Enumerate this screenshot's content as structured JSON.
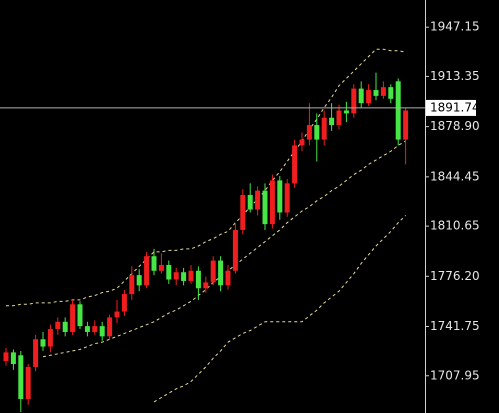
{
  "chart_data": {
    "type": "candlestick",
    "ylim": [
      1682.4,
      1965.8
    ],
    "yticks": [
      1947.15,
      1913.35,
      {
        "value": 1878.9,
        "label": "1878.90"
      },
      1844.45,
      1810.65,
      {
        "value": 1776.2,
        "label": "1776.20"
      },
      1741.75,
      1707.95
    ],
    "last_price": 1891.74,
    "up_color": "#f01e1e",
    "down_color": "#46e646",
    "band_color": "#e6dc9a",
    "open": [
      1718,
      1724,
      1722,
      1692,
      1714,
      1733,
      1728,
      1740,
      1745,
      1738,
      1757,
      1742,
      1738,
      1742,
      1735,
      1748,
      1752,
      1764,
      1777,
      1770,
      1790,
      1780,
      1784,
      1774,
      1779,
      1773,
      1780,
      1768,
      1772,
      1787,
      1770,
      1780,
      1808,
      1832,
      1822,
      1835,
      1812,
      1842,
      1820,
      1840,
      1866,
      1870,
      1880,
      1870,
      1885,
      1880,
      1890,
      1888,
      1905,
      1895,
      1904,
      1900,
      1906,
      1910,
      1870
    ],
    "high": [
      1727,
      1726,
      1725,
      1716,
      1736,
      1738,
      1743,
      1748,
      1748,
      1760,
      1759,
      1745,
      1746,
      1745,
      1750,
      1760,
      1767,
      1783,
      1781,
      1793,
      1795,
      1792,
      1787,
      1782,
      1782,
      1784,
      1783,
      1776,
      1790,
      1790,
      1784,
      1812,
      1836,
      1840,
      1838,
      1840,
      1846,
      1845,
      1843,
      1870,
      1875,
      1895,
      1888,
      1890,
      1895,
      1894,
      1896,
      1908,
      1910,
      1908,
      1916,
      1910,
      1908,
      1912,
      1892
    ],
    "low": [
      1715,
      1712,
      1683,
      1688,
      1711,
      1725,
      1724,
      1736,
      1735,
      1736,
      1740,
      1735,
      1736,
      1732,
      1733,
      1744,
      1749,
      1760,
      1766,
      1768,
      1777,
      1778,
      1771,
      1770,
      1770,
      1771,
      1760,
      1765,
      1770,
      1766,
      1767,
      1778,
      1805,
      1820,
      1818,
      1808,
      1809,
      1815,
      1817,
      1837,
      1862,
      1866,
      1855,
      1866,
      1876,
      1877,
      1882,
      1885,
      1892,
      1893,
      1897,
      1898,
      1895,
      1866,
      1853
    ],
    "close": [
      1724,
      1716,
      1692,
      1714,
      1733,
      1728,
      1740,
      1745,
      1738,
      1757,
      1742,
      1738,
      1742,
      1735,
      1748,
      1752,
      1764,
      1777,
      1770,
      1790,
      1780,
      1784,
      1774,
      1779,
      1773,
      1780,
      1768,
      1772,
      1787,
      1770,
      1780,
      1808,
      1832,
      1822,
      1835,
      1812,
      1842,
      1820,
      1840,
      1866,
      1870,
      1880,
      1870,
      1885,
      1880,
      1890,
      1888,
      1905,
      1895,
      1904,
      1900,
      1906,
      1898,
      1870,
      1890
    ],
    "bands": {
      "upper": [
        1756,
        1756,
        1757,
        1757,
        1758,
        1758,
        1758,
        1759,
        1759,
        1760,
        1760,
        1762,
        1763,
        1765,
        1766,
        1768,
        1773,
        1778,
        1783,
        1788,
        1793,
        1793,
        1794,
        1794,
        1795,
        1795,
        1797,
        1800,
        1802,
        1805,
        1807,
        1813,
        1818,
        1824,
        1829,
        1835,
        1842,
        1848,
        1855,
        1862,
        1869,
        1877,
        1884,
        1892,
        1899,
        1907,
        1912,
        1917,
        1922,
        1927,
        1932,
        1932,
        1931,
        1931,
        1930
      ],
      "middle": [
        null,
        null,
        null,
        null,
        null,
        1721,
        1722,
        1723,
        1724,
        1725,
        1726,
        1728,
        1730,
        1731,
        1733,
        1735,
        1737,
        1739,
        1741,
        1743,
        1745,
        1748,
        1751,
        1753,
        1756,
        1759,
        1763,
        1767,
        1772,
        1776,
        1780,
        1784,
        1788,
        1792,
        1796,
        1800,
        1804,
        1808,
        1813,
        1817,
        1821,
        1824,
        1828,
        1831,
        1835,
        1838,
        1842,
        1846,
        1849,
        1853,
        1856,
        1859,
        1862,
        1866,
        1869
      ],
      "lower": [
        null,
        null,
        null,
        null,
        null,
        null,
        null,
        null,
        null,
        null,
        null,
        null,
        null,
        null,
        null,
        null,
        null,
        null,
        null,
        null,
        1690,
        1693,
        1696,
        1699,
        1701,
        1704,
        1709,
        1714,
        1720,
        1725,
        1731,
        1734,
        1737,
        1739,
        1742,
        1745,
        1745,
        1745,
        1745,
        1745,
        1745,
        1749,
        1753,
        1758,
        1762,
        1766,
        1772,
        1778,
        1785,
        1791,
        1797,
        1802,
        1807,
        1813,
        1818
      ]
    }
  }
}
